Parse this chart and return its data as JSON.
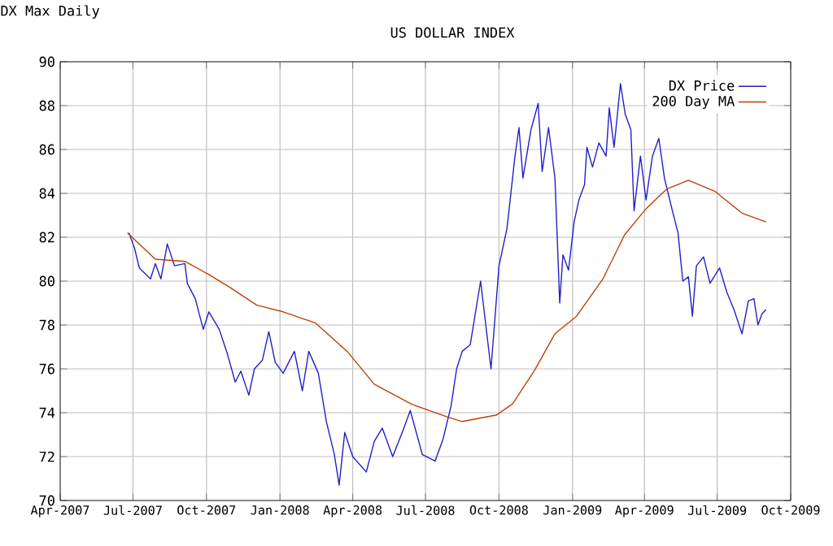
{
  "chart_data": {
    "type": "line",
    "title": "US DOLLAR INDEX",
    "annotations": [
      "DX Max Daily"
    ],
    "xlim": [
      "2007-04-01",
      "2009-10-01"
    ],
    "xticks": [
      {
        "value": "2007-04-01",
        "label": "Apr-2007"
      },
      {
        "value": "2007-07-01",
        "label": "Jul-2007"
      },
      {
        "value": "2007-10-01",
        "label": "Oct-2007"
      },
      {
        "value": "2008-01-01",
        "label": "Jan-2008"
      },
      {
        "value": "2008-04-01",
        "label": "Apr-2008"
      },
      {
        "value": "2008-07-01",
        "label": "Jul-2008"
      },
      {
        "value": "2008-10-01",
        "label": "Oct-2008"
      },
      {
        "value": "2009-01-01",
        "label": "Jan-2009"
      },
      {
        "value": "2009-04-01",
        "label": "Apr-2009"
      },
      {
        "value": "2009-07-01",
        "label": "Jul-2009"
      },
      {
        "value": "2009-10-01",
        "label": "Oct-2009"
      }
    ],
    "ylim": [
      70,
      90
    ],
    "yticks": [
      70,
      72,
      74,
      76,
      78,
      80,
      82,
      84,
      86,
      88,
      90
    ],
    "grid": true,
    "legend": "top right",
    "marker": "none",
    "line_style": "solid",
    "series": [
      {
        "name": "DX Price",
        "color": "#2020c8",
        "x": [
          "2007-06-26",
          "2007-07-03",
          "2007-07-09",
          "2007-07-23",
          "2007-07-29",
          "2007-08-05",
          "2007-08-13",
          "2007-08-22",
          "2007-09-04",
          "2007-09-07",
          "2007-09-17",
          "2007-09-27",
          "2007-10-04",
          "2007-10-17",
          "2007-10-27",
          "2007-11-06",
          "2007-11-13",
          "2007-11-23",
          "2007-11-30",
          "2007-12-10",
          "2007-12-18",
          "2007-12-26",
          "2008-01-05",
          "2008-01-19",
          "2008-01-29",
          "2008-02-06",
          "2008-02-18",
          "2008-02-28",
          "2008-03-09",
          "2008-03-15",
          "2008-03-22",
          "2008-04-01",
          "2008-04-18",
          "2008-04-28",
          "2008-05-08",
          "2008-05-21",
          "2008-06-03",
          "2008-06-12",
          "2008-06-27",
          "2008-07-13",
          "2008-07-23",
          "2008-08-02",
          "2008-08-09",
          "2008-08-16",
          "2008-08-26",
          "2008-09-08",
          "2008-09-21",
          "2008-10-01",
          "2008-10-11",
          "2008-10-21",
          "2008-10-26",
          "2008-10-31",
          "2008-11-10",
          "2008-11-19",
          "2008-11-24",
          "2008-12-02",
          "2008-12-10",
          "2008-12-16",
          "2008-12-20",
          "2008-12-27",
          "2009-01-03",
          "2009-01-09",
          "2009-01-16",
          "2009-01-19",
          "2009-01-26",
          "2009-02-03",
          "2009-02-12",
          "2009-02-16",
          "2009-02-22",
          "2009-03-02",
          "2009-03-08",
          "2009-03-15",
          "2009-03-19",
          "2009-03-27",
          "2009-04-03",
          "2009-04-11",
          "2009-04-19",
          "2009-04-26",
          "2009-05-06",
          "2009-05-13",
          "2009-05-19",
          "2009-05-26",
          "2009-05-31",
          "2009-06-05",
          "2009-06-14",
          "2009-06-22",
          "2009-07-04",
          "2009-07-13",
          "2009-07-22",
          "2009-08-01",
          "2009-08-09",
          "2009-08-16",
          "2009-08-21",
          "2009-08-26",
          "2009-08-31"
        ],
        "values": [
          82.2,
          81.5,
          80.6,
          80.1,
          80.8,
          80.1,
          81.7,
          80.7,
          80.8,
          79.9,
          79.2,
          77.8,
          78.6,
          77.8,
          76.7,
          75.4,
          75.9,
          74.8,
          76.0,
          76.4,
          77.7,
          76.3,
          75.8,
          76.8,
          75.0,
          76.8,
          75.8,
          73.6,
          72.1,
          70.7,
          73.1,
          72.0,
          71.3,
          72.7,
          73.3,
          72.0,
          73.2,
          74.1,
          72.1,
          71.8,
          72.8,
          74.3,
          76.0,
          76.8,
          77.1,
          80.0,
          76.0,
          80.7,
          82.4,
          85.7,
          87.0,
          84.7,
          86.9,
          88.1,
          85.0,
          87.0,
          84.7,
          79.0,
          81.2,
          80.5,
          82.7,
          83.7,
          84.4,
          86.1,
          85.2,
          86.3,
          85.7,
          87.9,
          86.1,
          89.0,
          87.6,
          86.9,
          83.2,
          85.7,
          83.7,
          85.7,
          86.5,
          84.7,
          83.2,
          82.2,
          80.0,
          80.2,
          78.4,
          80.7,
          81.1,
          79.9,
          80.6,
          79.5,
          78.7,
          77.6,
          79.1,
          79.2,
          78.0,
          78.5,
          78.7
        ]
      },
      {
        "name": "200 Day MA",
        "color": "#c04000",
        "x": [
          "2007-06-24",
          "2007-07-29",
          "2007-09-04",
          "2007-10-04",
          "2007-10-31",
          "2007-12-03",
          "2008-01-05",
          "2008-02-14",
          "2008-03-25",
          "2008-04-28",
          "2008-06-13",
          "2008-07-29",
          "2008-08-16",
          "2008-09-28",
          "2008-10-18",
          "2008-11-14",
          "2008-12-10",
          "2009-01-06",
          "2009-02-08",
          "2009-03-07",
          "2009-04-03",
          "2009-04-29",
          "2009-05-26",
          "2009-06-28",
          "2009-08-01",
          "2009-08-31"
        ],
        "values": [
          82.2,
          81.0,
          80.9,
          80.3,
          79.7,
          78.9,
          78.6,
          78.1,
          76.8,
          75.3,
          74.4,
          73.8,
          73.6,
          73.9,
          74.4,
          75.9,
          77.6,
          78.4,
          80.1,
          82.1,
          83.3,
          84.2,
          84.6,
          84.1,
          83.1,
          82.7
        ]
      }
    ]
  }
}
